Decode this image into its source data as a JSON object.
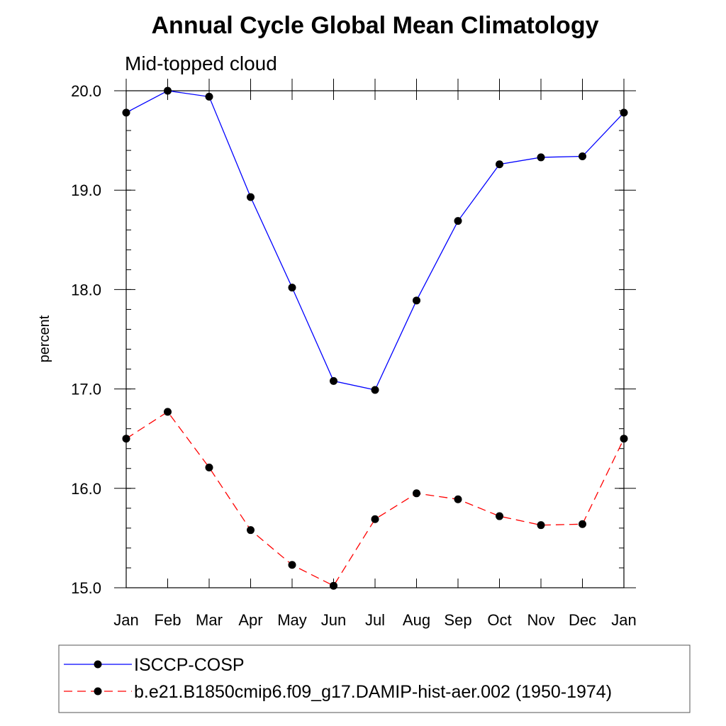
{
  "chart_data": {
    "type": "line",
    "title": "Annual Cycle Global Mean Climatology",
    "subtitle": "Mid-topped cloud",
    "xlabel": "",
    "ylabel": "percent",
    "categories": [
      "Jan",
      "Feb",
      "Mar",
      "Apr",
      "May",
      "Jun",
      "Jul",
      "Aug",
      "Sep",
      "Oct",
      "Nov",
      "Dec",
      "Jan"
    ],
    "ylim": [
      15.0,
      20.0
    ],
    "yticks": [
      "15.0",
      "16.0",
      "17.0",
      "18.0",
      "19.0",
      "20.0"
    ],
    "grid": false,
    "legend_position": "bottom",
    "series": [
      {
        "name": "ISCCP-COSP",
        "color": "#0000ff",
        "line_style": "solid",
        "marker": "filled-circle",
        "values": [
          19.78,
          20.0,
          19.94,
          18.93,
          18.02,
          17.08,
          16.99,
          17.89,
          18.69,
          19.26,
          19.33,
          19.34,
          19.78
        ]
      },
      {
        "name": "b.e21.B1850cmip6.f09_g17.DAMIP-hist-aer.002 (1950-1974)",
        "color": "#ff0000",
        "line_style": "dashed",
        "marker": "filled-circle",
        "values": [
          16.5,
          16.77,
          16.21,
          15.58,
          15.23,
          15.02,
          15.69,
          15.95,
          15.89,
          15.72,
          15.63,
          15.64,
          16.5
        ]
      }
    ]
  }
}
